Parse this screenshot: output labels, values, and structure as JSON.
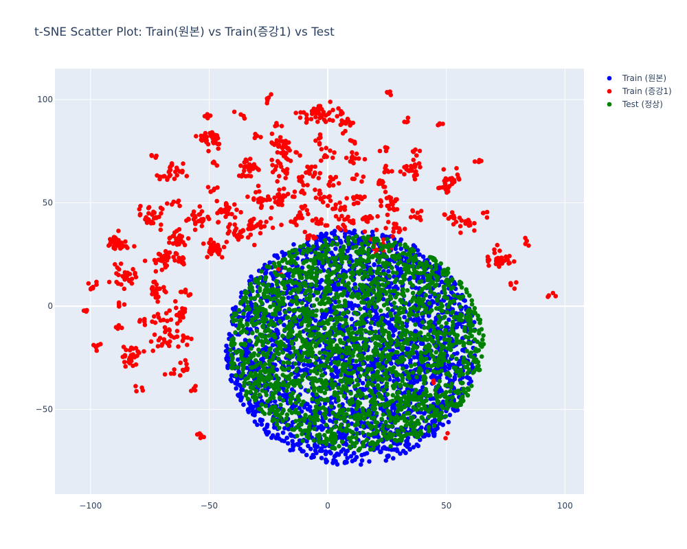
{
  "chart_data": {
    "type": "scatter",
    "title": "t-SNE Scatter Plot: Train(원본) vs Train(증강1) vs Test",
    "xlabel": "",
    "ylabel": "",
    "xlim": [
      -115,
      108
    ],
    "ylim": [
      -91,
      115
    ],
    "x_ticks": [
      -100,
      -50,
      0,
      50,
      100
    ],
    "y_ticks": [
      100,
      50,
      0,
      -50
    ],
    "x_tick_labels": [
      "−100",
      "−50",
      "0",
      "50",
      "100"
    ],
    "y_tick_labels": [
      "100",
      "50",
      "0",
      "−50"
    ],
    "grid": true,
    "legend_position": "top-right",
    "plot_bgcolor": "#e5ecf6",
    "series": [
      {
        "name": "Train (원본)",
        "color": "#0000ff",
        "distribution": "dense disk",
        "center": [
          10,
          -20
        ],
        "radius": [
          53,
          57
        ],
        "count": 2600
      },
      {
        "name": "Train (증강1)",
        "color": "#ff0000",
        "distribution": "clusters",
        "clusters": [
          [
            -102,
            -3,
            1,
            4
          ],
          [
            -100,
            9,
            1.5,
            8
          ],
          [
            -97,
            -19,
            1.2,
            6
          ],
          [
            -89,
            30,
            2.5,
            30
          ],
          [
            -88,
            1,
            1,
            5
          ],
          [
            -87,
            -10,
            1,
            4
          ],
          [
            -86,
            14,
            2.5,
            28
          ],
          [
            -83,
            -24,
            2.5,
            28
          ],
          [
            -78,
            -6,
            1,
            4
          ],
          [
            -78,
            -40,
            1,
            4
          ],
          [
            -75,
            44,
            2.5,
            28
          ],
          [
            -73,
            73,
            1,
            4
          ],
          [
            -72,
            8,
            2.5,
            22
          ],
          [
            -72,
            -6,
            2,
            10
          ],
          [
            -70,
            22,
            3,
            30
          ],
          [
            -70,
            -17,
            2.5,
            20
          ],
          [
            -66,
            64,
            2.5,
            26
          ],
          [
            -65,
            49,
            1.5,
            6
          ],
          [
            -64,
            33,
            2.5,
            22
          ],
          [
            -62,
            21,
            1.5,
            8
          ],
          [
            -62,
            -3,
            2.5,
            20
          ],
          [
            -62,
            -15,
            2,
            12
          ],
          [
            -62,
            -30,
            2,
            14
          ],
          [
            -60,
            6,
            1.2,
            6
          ],
          [
            -56,
            -40,
            1,
            4
          ],
          [
            -55,
            43,
            2.5,
            24
          ],
          [
            -54,
            -63,
            1,
            5
          ],
          [
            -51,
            92,
            1,
            4
          ],
          [
            -49,
            81,
            2.5,
            30
          ],
          [
            -48,
            28,
            2.5,
            28
          ],
          [
            -48,
            57,
            1.2,
            6
          ],
          [
            -48,
            69,
            1,
            4
          ],
          [
            -42,
            46,
            2.5,
            28
          ],
          [
            -38,
            35,
            2.5,
            20
          ],
          [
            -36,
            92,
            1,
            4
          ],
          [
            -33,
            67,
            2.5,
            30
          ],
          [
            -30,
            82,
            1,
            4
          ],
          [
            -30,
            40,
            2.5,
            22
          ],
          [
            -28,
            52,
            2.5,
            22
          ],
          [
            -25,
            101,
            1,
            5
          ],
          [
            -22,
            68,
            1.5,
            8
          ],
          [
            -21,
            88,
            1,
            4
          ],
          [
            -20,
            78,
            2.5,
            24
          ],
          [
            -20,
            53,
            2.5,
            20
          ],
          [
            -19,
            64,
            1.5,
            8
          ],
          [
            -17,
            73,
            2,
            12
          ],
          [
            -14,
            42,
            2,
            10
          ],
          [
            -12,
            59,
            2,
            12
          ],
          [
            -11,
            92,
            1,
            4
          ],
          [
            -10,
            46,
            1.5,
            8
          ],
          [
            -7,
            34,
            1.5,
            8
          ],
          [
            -6,
            65,
            2,
            14
          ],
          [
            -4,
            93,
            2.5,
            30
          ],
          [
            -4,
            80,
            1.5,
            6
          ],
          [
            -3,
            54,
            2,
            12
          ],
          [
            -4,
            40,
            1.5,
            10
          ],
          [
            0,
            74,
            1.5,
            8
          ],
          [
            2,
            60,
            1.5,
            8
          ],
          [
            3,
            48,
            2,
            12
          ],
          [
            6,
            90,
            2.5,
            24
          ],
          [
            8,
            40,
            2,
            14
          ],
          [
            10,
            72,
            2,
            12
          ],
          [
            11,
            79,
            1,
            4
          ],
          [
            12,
            52,
            2,
            12
          ],
          [
            13,
            62,
            1.5,
            6
          ],
          [
            16,
            42,
            2,
            14
          ],
          [
            20,
            30,
            2,
            12
          ],
          [
            22,
            59,
            1.5,
            8
          ],
          [
            24,
            76,
            1,
            4
          ],
          [
            25,
            66,
            1.2,
            6
          ],
          [
            26,
            103,
            1,
            4
          ],
          [
            26,
            50,
            2.5,
            22
          ],
          [
            29,
            38,
            2,
            12
          ],
          [
            33,
            90,
            1,
            4
          ],
          [
            35,
            66,
            2.5,
            24
          ],
          [
            36,
            45,
            2,
            10
          ],
          [
            38,
            74,
            1,
            4
          ],
          [
            47,
            87,
            1,
            4
          ],
          [
            50,
            57,
            2,
            16
          ],
          [
            52,
            44,
            1.5,
            8
          ],
          [
            53,
            62,
            2,
            12
          ],
          [
            57,
            40,
            2,
            14
          ],
          [
            63,
            71,
            1,
            4
          ],
          [
            67,
            44,
            1,
            4
          ],
          [
            72,
            23,
            3,
            32
          ],
          [
            78,
            10,
            1,
            4
          ],
          [
            83,
            31,
            1,
            4
          ],
          [
            95,
            5,
            1,
            4
          ],
          [
            -20,
            17,
            1,
            2
          ],
          [
            45,
            -36,
            1,
            2
          ],
          [
            50,
            -62,
            1,
            2
          ]
        ]
      },
      {
        "name": "Test (정상)",
        "color": "#008000",
        "distribution": "dense disk",
        "center": [
          12,
          -18
        ],
        "radius": [
          54,
          52
        ],
        "count": 2300
      }
    ]
  }
}
